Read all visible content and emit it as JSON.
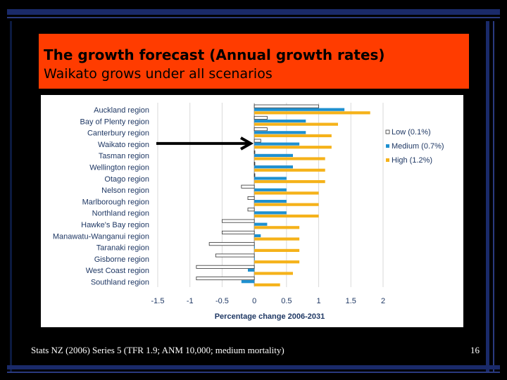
{
  "slide": {
    "title": "The growth forecast (Annual growth rates)",
    "subtitle": "Waikato grows under all scenarios",
    "footer": "Stats NZ (2006) Series 5 (TFR 1.9; ANM 10,000; medium mortality)",
    "page_number": "16"
  },
  "colors": {
    "title_box": "#ff3c00",
    "low": "#000000",
    "medium": "#1e90d0",
    "high": "#f5b21a",
    "frame_blue": "#1a2a6a"
  },
  "chart_data": {
    "type": "bar",
    "orientation": "horizontal",
    "categories": [
      "Auckland region",
      "Bay of Plenty region",
      "Canterbury region",
      "Waikato region",
      "Tasman region",
      "Wellington region",
      "Otago region",
      "Nelson region",
      "Marlborough region",
      "Northland region",
      "Hawke's Bay region",
      "Manawatu-Wanganui region",
      "Taranaki region",
      "Gisborne region",
      "West Coast region",
      "Southland region"
    ],
    "series": [
      {
        "name": "Low (0.1%)",
        "values": [
          1.0,
          0.2,
          0.2,
          0.1,
          0.0,
          0.0,
          0.0,
          -0.2,
          -0.1,
          -0.1,
          -0.5,
          -0.5,
          -0.7,
          -0.6,
          -0.9,
          -0.9
        ]
      },
      {
        "name": "Medium (0.7%)",
        "values": [
          1.4,
          0.8,
          0.8,
          0.7,
          0.6,
          0.6,
          0.5,
          0.5,
          0.5,
          0.5,
          0.2,
          0.1,
          0.0,
          0.0,
          -0.1,
          -0.2
        ]
      },
      {
        "name": "High (1.2%)",
        "values": [
          1.8,
          1.3,
          1.2,
          1.2,
          1.1,
          1.1,
          1.1,
          1.0,
          1.0,
          1.0,
          0.7,
          0.7,
          0.7,
          0.7,
          0.6,
          0.4
        ]
      }
    ],
    "xlabel": "Percentage change 2006-2031",
    "ylabel": "",
    "xlim": [
      -1.5,
      2
    ],
    "xticks": [
      "-1.5",
      "-1",
      "-0.5",
      "0",
      "0.5",
      "1",
      "1.5",
      "2"
    ],
    "grid": true,
    "legend": "right",
    "annotation": "arrow pointing to Waikato region"
  }
}
